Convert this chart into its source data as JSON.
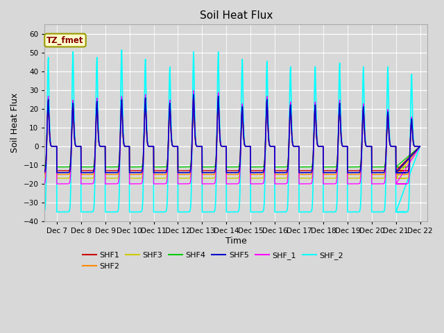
{
  "title": "Soil Heat Flux",
  "xlabel": "Time",
  "ylabel": "Soil Heat Flux",
  "xlim_days": [
    6.5,
    22.3
  ],
  "ylim": [
    -40,
    65
  ],
  "yticks": [
    -40,
    -30,
    -20,
    -10,
    0,
    10,
    20,
    30,
    40,
    50,
    60
  ],
  "x_tick_labels": [
    "Dec 7",
    "Dec 8",
    "Dec 9",
    "Dec 10",
    "Dec 11",
    "Dec 12",
    "Dec 13",
    "Dec 14",
    "Dec 15",
    "Dec 16",
    "Dec 17",
    "Dec 18",
    "Dec 19",
    "Dec 20",
    "Dec 21",
    "Dec 22"
  ],
  "x_tick_positions": [
    7,
    8,
    9,
    10,
    11,
    12,
    13,
    14,
    15,
    16,
    17,
    18,
    19,
    20,
    21,
    22
  ],
  "series_colors": {
    "SHF1": "#cc0000",
    "SHF2": "#ff8800",
    "SHF3": "#cccc00",
    "SHF4": "#00cc00",
    "SHF5": "#0000cc",
    "SHF_1": "#ff00ff",
    "SHF_2": "#00ffff"
  },
  "annotation_text": "TZ_fmet",
  "annotation_bbox_facecolor": "#ffffcc",
  "annotation_bbox_edgecolor": "#999900",
  "annotation_text_color": "#880000",
  "background_color": "#d8d8d8",
  "figsize": [
    6.4,
    4.8
  ],
  "dpi": 100,
  "peak_day_fracs": [
    0.65,
    0.67,
    0.66,
    0.68,
    0.66,
    0.67,
    0.65,
    0.67,
    0.66,
    0.68,
    0.65,
    0.67,
    0.68,
    0.66,
    0.67,
    0.65
  ],
  "shf2_peak_amps": [
    48,
    51,
    48,
    52,
    47,
    43,
    51,
    51,
    47,
    46,
    43,
    43,
    45,
    43,
    43,
    39
  ],
  "shf1_m_peak_amps": [
    27,
    25,
    26,
    27,
    28,
    25,
    30,
    29,
    23,
    27,
    24,
    24,
    25,
    23,
    20,
    16
  ],
  "night_level_shf2": -35,
  "night_level_shf1": -13,
  "night_level_shf2_orange": -15,
  "night_level_shf3": -17,
  "night_level_shf4": -11,
  "night_level_shf5": -14,
  "night_level_shf1_m": -20
}
